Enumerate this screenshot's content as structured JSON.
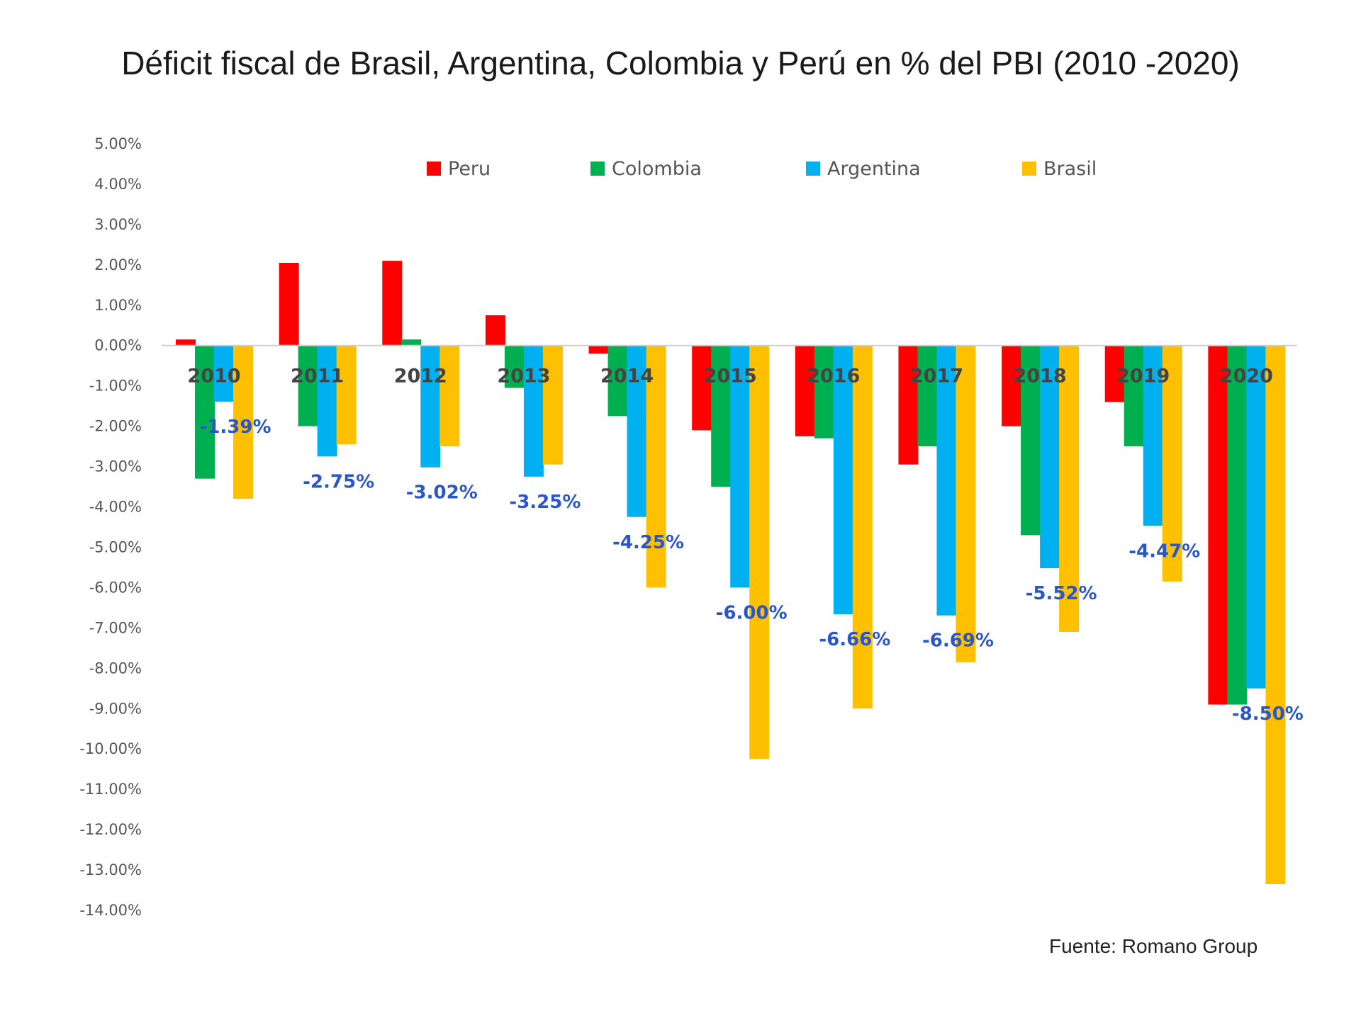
{
  "title": "Déficit fiscal de Brasil, Argentina, Colombia y Perú en % del PBI (2010 -2020)",
  "source": "Fuente: Romano Group",
  "chart_data": {
    "type": "bar",
    "title": "Déficit fiscal de Brasil, Argentina, Colombia y Perú en % del PBI (2010 -2020)",
    "xlabel": "",
    "ylabel": "",
    "ylim": [
      -14,
      5
    ],
    "y_ticks": [
      "5.00%",
      "4.00%",
      "3.00%",
      "2.00%",
      "1.00%",
      "0.00%",
      "-1.00%",
      "-2.00%",
      "-3.00%",
      "-4.00%",
      "-5.00%",
      "-6.00%",
      "-7.00%",
      "-8.00%",
      "-9.00%",
      "-10.00%",
      "-11.00%",
      "-12.00%",
      "-13.00%",
      "-14.00%"
    ],
    "categories": [
      "2010",
      "2011",
      "2012",
      "2013",
      "2014",
      "2015",
      "2016",
      "2017",
      "2018",
      "2019",
      "2020"
    ],
    "legend_position": "top",
    "grid": false,
    "series": [
      {
        "name": "Peru",
        "color": "#ff0000",
        "values": [
          0.15,
          2.05,
          2.1,
          0.75,
          -0.2,
          -2.1,
          -2.25,
          -2.95,
          -2.0,
          -1.4,
          -8.9
        ]
      },
      {
        "name": "Colombia",
        "color": "#00b050",
        "values": [
          -3.3,
          -2.0,
          0.15,
          -1.05,
          -1.75,
          -3.5,
          -2.3,
          -2.5,
          -4.7,
          -2.5,
          -8.9
        ]
      },
      {
        "name": "Argentina",
        "color": "#00b0f0",
        "values": [
          -1.39,
          -2.75,
          -3.02,
          -3.25,
          -4.25,
          -6.0,
          -6.66,
          -6.69,
          -5.52,
          -4.47,
          -8.5
        ]
      },
      {
        "name": "Brasil",
        "color": "#ffc000",
        "values": [
          -3.8,
          -2.45,
          -2.5,
          -2.95,
          -6.0,
          -10.25,
          -9.0,
          -7.85,
          -7.1,
          -5.85,
          -13.35
        ]
      }
    ],
    "data_labels": {
      "series": "Argentina",
      "labels": [
        "-1.39%",
        "-2.75%",
        "-3.02%",
        "-3.25%",
        "-4.25%",
        "-6.00%",
        "-6.66%",
        "-6.69%",
        "-5.52%",
        "-4.47%",
        "-8.50%"
      ]
    }
  }
}
